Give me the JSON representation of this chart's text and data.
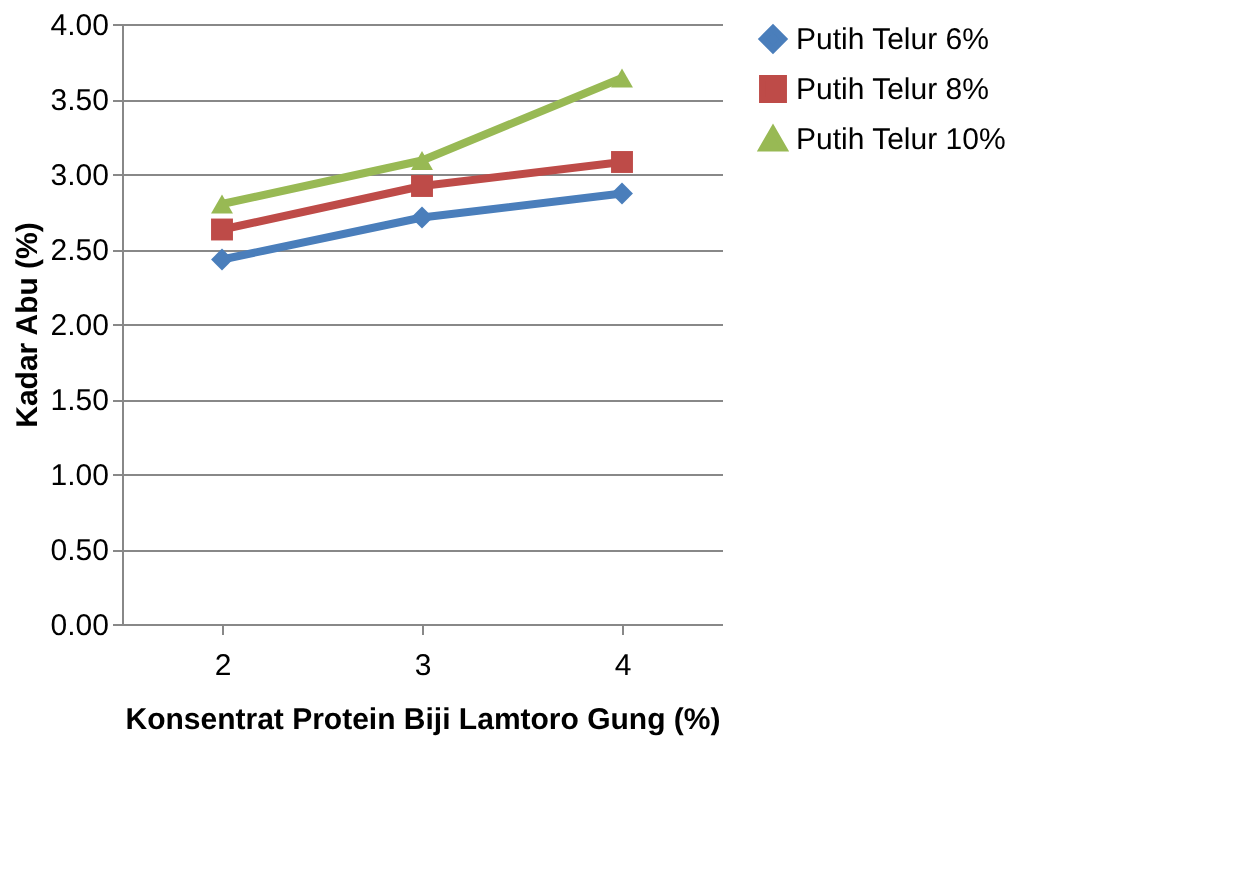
{
  "chart_data": {
    "type": "line",
    "xlabel": "Konsentrat Protein Biji Lamtoro Gung (%)",
    "ylabel": "Kadar Abu (%)",
    "categories": [
      "2",
      "3",
      "4"
    ],
    "series": [
      {
        "name": "Putih Telur 6%",
        "color": "#4a7ebb",
        "marker": "diamond",
        "values": [
          2.43,
          2.71,
          2.87
        ]
      },
      {
        "name": "Putih Telur 8%",
        "color": "#be4b48",
        "marker": "square",
        "values": [
          2.63,
          2.92,
          3.08
        ]
      },
      {
        "name": "Putih Telur 10%",
        "color": "#98b954",
        "marker": "triangle",
        "values": [
          2.8,
          3.09,
          3.64
        ]
      }
    ],
    "ylim": [
      0,
      4
    ],
    "yticks": [
      {
        "value": 0,
        "label": "0.00"
      },
      {
        "value": 0.5,
        "label": "0.50"
      },
      {
        "value": 1,
        "label": "1.00"
      },
      {
        "value": 1.5,
        "label": "1.50"
      },
      {
        "value": 2,
        "label": "2.00"
      },
      {
        "value": 2.5,
        "label": "2.50"
      },
      {
        "value": 3,
        "label": "3.00"
      },
      {
        "value": 3.5,
        "label": "3.50"
      },
      {
        "value": 4,
        "label": "4.00"
      }
    ],
    "grid": "y",
    "legend": "right",
    "line_style": "solid"
  }
}
